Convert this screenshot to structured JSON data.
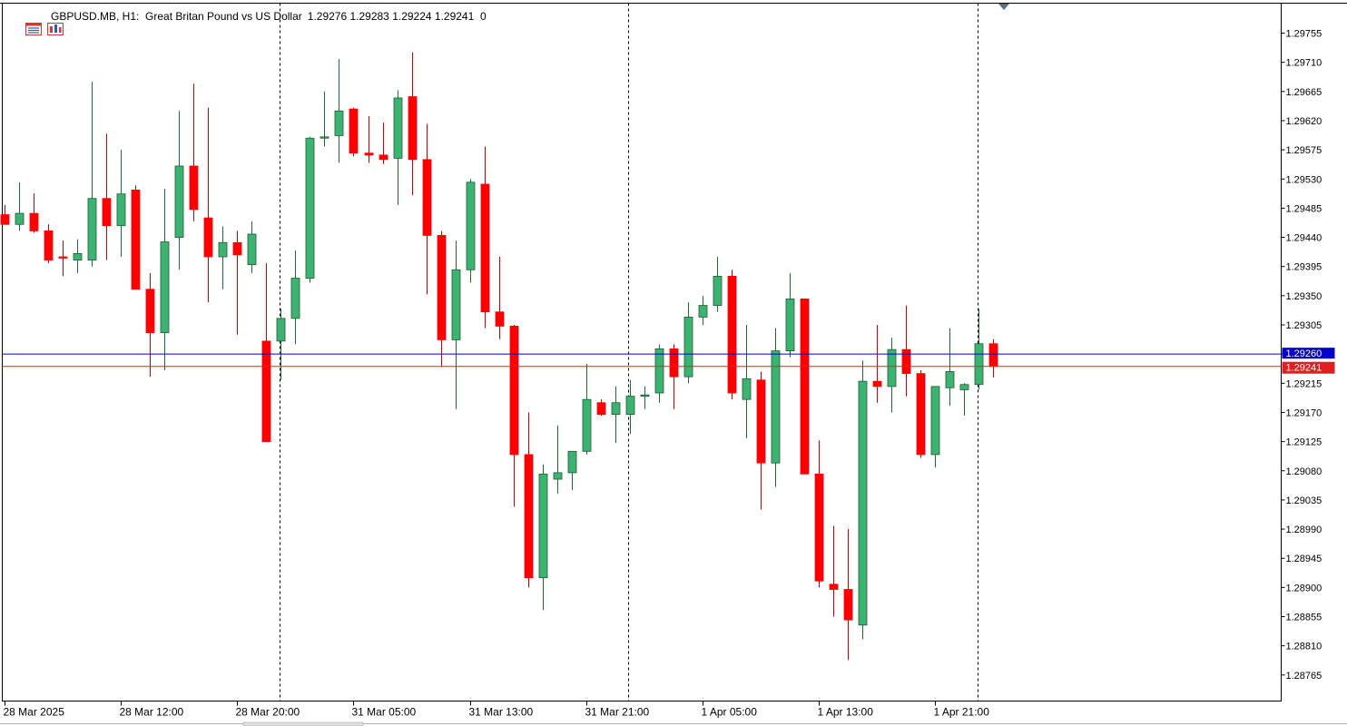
{
  "header": {
    "symbol_text": "GBPUSD.MB, H1:  Great Britan Pound vs US Dollar",
    "ohlc_text": "1.29276 1.29283 1.29224 1.29241  0"
  },
  "colors": {
    "bull": "#3cb371",
    "bear": "#ff0000",
    "ask_line": "#0000cd",
    "bid_line": "#e02020",
    "grid_sep": "#000000",
    "text": "#000000"
  },
  "icons": [
    "chart-list-icon",
    "chart-settings-icon"
  ],
  "price_tags": {
    "ask_value": "1.29260",
    "bid_value": "1.29241"
  },
  "chart_data": {
    "type": "candlestick",
    "title": "",
    "symbol": "GBPUSD.MB",
    "timeframe": "H1",
    "ylim": [
      1.2874,
      1.298
    ],
    "yticks": [
      "1.29755",
      "1.29710",
      "1.29665",
      "1.29620",
      "1.29575",
      "1.29530",
      "1.29485",
      "1.29440",
      "1.29395",
      "1.29350",
      "1.29305",
      "1.29260",
      "1.29215",
      "1.29170",
      "1.29125",
      "1.29080",
      "1.29035",
      "1.28990",
      "1.28945",
      "1.28900",
      "1.28855",
      "1.28810",
      "1.28765"
    ],
    "xticks": [
      {
        "label": "28 Mar 2025",
        "index": 0
      },
      {
        "label": "28 Mar 12:00",
        "index": 8
      },
      {
        "label": "28 Mar 20:00",
        "index": 16
      },
      {
        "label": "31 Mar 05:00",
        "index": 24
      },
      {
        "label": "31 Mar 13:00",
        "index": 32
      },
      {
        "label": "31 Mar 21:00",
        "index": 40
      },
      {
        "label": "1 Apr 05:00",
        "index": 48
      },
      {
        "label": "1 Apr 13:00",
        "index": 56
      },
      {
        "label": "1 Apr 21:00",
        "index": 64
      }
    ],
    "day_separators": [
      18.9,
      42.9,
      66.9
    ],
    "ask_price": 1.2926,
    "bid_price": 1.29241,
    "candles": [
      {
        "o": 1.29475,
        "h": 1.2949,
        "l": 1.2946,
        "c": 1.2946
      },
      {
        "o": 1.2946,
        "h": 1.29525,
        "l": 1.2945,
        "c": 1.29477
      },
      {
        "o": 1.29477,
        "h": 1.29508,
        "l": 1.29447,
        "c": 1.2945
      },
      {
        "o": 1.2945,
        "h": 1.2946,
        "l": 1.294,
        "c": 1.29405
      },
      {
        "o": 1.2941,
        "h": 1.29435,
        "l": 1.2938,
        "c": 1.29408
      },
      {
        "o": 1.29405,
        "h": 1.29437,
        "l": 1.29385,
        "c": 1.29415
      },
      {
        "o": 1.29405,
        "h": 1.2968,
        "l": 1.29395,
        "c": 1.295
      },
      {
        "o": 1.295,
        "h": 1.296,
        "l": 1.29405,
        "c": 1.29458
      },
      {
        "o": 1.29458,
        "h": 1.29575,
        "l": 1.2941,
        "c": 1.29507
      },
      {
        "o": 1.29513,
        "h": 1.2952,
        "l": 1.2936,
        "c": 1.2936
      },
      {
        "o": 1.2936,
        "h": 1.29385,
        "l": 1.29225,
        "c": 1.29293
      },
      {
        "o": 1.29293,
        "h": 1.29515,
        "l": 1.29235,
        "c": 1.29433
      },
      {
        "o": 1.2944,
        "h": 1.29635,
        "l": 1.2939,
        "c": 1.2955
      },
      {
        "o": 1.2955,
        "h": 1.29677,
        "l": 1.29465,
        "c": 1.29483
      },
      {
        "o": 1.2947,
        "h": 1.2964,
        "l": 1.2934,
        "c": 1.2941
      },
      {
        "o": 1.2941,
        "h": 1.29457,
        "l": 1.2936,
        "c": 1.29432
      },
      {
        "o": 1.29432,
        "h": 1.2945,
        "l": 1.2929,
        "c": 1.29413
      },
      {
        "o": 1.29398,
        "h": 1.29465,
        "l": 1.29385,
        "c": 1.29445
      },
      {
        "o": 1.2928,
        "h": 1.294,
        "l": 1.29125,
        "c": 1.29125
      },
      {
        "o": 1.2928,
        "h": 1.2933,
        "l": 1.2922,
        "c": 1.29315
      },
      {
        "o": 1.29315,
        "h": 1.2942,
        "l": 1.29275,
        "c": 1.29377
      },
      {
        "o": 1.29377,
        "h": 1.29595,
        "l": 1.2937,
        "c": 1.29593
      },
      {
        "o": 1.29593,
        "h": 1.29665,
        "l": 1.2958,
        "c": 1.29595
      },
      {
        "o": 1.29597,
        "h": 1.29715,
        "l": 1.29555,
        "c": 1.29635
      },
      {
        "o": 1.29638,
        "h": 1.2964,
        "l": 1.29565,
        "c": 1.2957
      },
      {
        "o": 1.2957,
        "h": 1.29627,
        "l": 1.29555,
        "c": 1.29567
      },
      {
        "o": 1.29567,
        "h": 1.29617,
        "l": 1.29553,
        "c": 1.2956
      },
      {
        "o": 1.29562,
        "h": 1.29667,
        "l": 1.2949,
        "c": 1.29655
      },
      {
        "o": 1.29657,
        "h": 1.29725,
        "l": 1.29505,
        "c": 1.2956
      },
      {
        "o": 1.2956,
        "h": 1.29615,
        "l": 1.29352,
        "c": 1.29443
      },
      {
        "o": 1.29443,
        "h": 1.2945,
        "l": 1.2924,
        "c": 1.29282
      },
      {
        "o": 1.29282,
        "h": 1.29435,
        "l": 1.29175,
        "c": 1.2939
      },
      {
        "o": 1.2939,
        "h": 1.2953,
        "l": 1.2937,
        "c": 1.29525
      },
      {
        "o": 1.29522,
        "h": 1.2958,
        "l": 1.293,
        "c": 1.29325
      },
      {
        "o": 1.29325,
        "h": 1.2941,
        "l": 1.29283,
        "c": 1.29303
      },
      {
        "o": 1.29303,
        "h": 1.29305,
        "l": 1.29025,
        "c": 1.29105
      },
      {
        "o": 1.29105,
        "h": 1.2917,
        "l": 1.289,
        "c": 1.28915
      },
      {
        "o": 1.28915,
        "h": 1.2909,
        "l": 1.28865,
        "c": 1.29075
      },
      {
        "o": 1.29067,
        "h": 1.2915,
        "l": 1.29045,
        "c": 1.29077
      },
      {
        "o": 1.29077,
        "h": 1.2911,
        "l": 1.2905,
        "c": 1.2911
      },
      {
        "o": 1.2911,
        "h": 1.29245,
        "l": 1.29105,
        "c": 1.2919
      },
      {
        "o": 1.29185,
        "h": 1.2919,
        "l": 1.29165,
        "c": 1.29167
      },
      {
        "o": 1.29167,
        "h": 1.2921,
        "l": 1.29123,
        "c": 1.29185
      },
      {
        "o": 1.29167,
        "h": 1.2922,
        "l": 1.29137,
        "c": 1.29195
      },
      {
        "o": 1.29195,
        "h": 1.2921,
        "l": 1.29175,
        "c": 1.29197
      },
      {
        "o": 1.292,
        "h": 1.29275,
        "l": 1.29185,
        "c": 1.29268
      },
      {
        "o": 1.29268,
        "h": 1.29275,
        "l": 1.29175,
        "c": 1.29225
      },
      {
        "o": 1.29225,
        "h": 1.2934,
        "l": 1.29215,
        "c": 1.29317
      },
      {
        "o": 1.29317,
        "h": 1.2935,
        "l": 1.29305,
        "c": 1.29335
      },
      {
        "o": 1.29335,
        "h": 1.2941,
        "l": 1.29325,
        "c": 1.2938
      },
      {
        "o": 1.2938,
        "h": 1.2939,
        "l": 1.2919,
        "c": 1.292
      },
      {
        "o": 1.2919,
        "h": 1.29305,
        "l": 1.2913,
        "c": 1.29222
      },
      {
        "o": 1.2922,
        "h": 1.29233,
        "l": 1.2902,
        "c": 1.29092
      },
      {
        "o": 1.29092,
        "h": 1.293,
        "l": 1.29055,
        "c": 1.29265
      },
      {
        "o": 1.29265,
        "h": 1.29385,
        "l": 1.29255,
        "c": 1.29345
      },
      {
        "o": 1.29345,
        "h": 1.29345,
        "l": 1.29075,
        "c": 1.29075
      },
      {
        "o": 1.29075,
        "h": 1.29127,
        "l": 1.289,
        "c": 1.2891
      },
      {
        "o": 1.28905,
        "h": 1.28995,
        "l": 1.28855,
        "c": 1.28897
      },
      {
        "o": 1.28897,
        "h": 1.2899,
        "l": 1.28788,
        "c": 1.2885
      },
      {
        "o": 1.28842,
        "h": 1.2925,
        "l": 1.2882,
        "c": 1.29218
      },
      {
        "o": 1.29218,
        "h": 1.29305,
        "l": 1.29185,
        "c": 1.2921
      },
      {
        "o": 1.2921,
        "h": 1.29285,
        "l": 1.2917,
        "c": 1.29267
      },
      {
        "o": 1.29267,
        "h": 1.29335,
        "l": 1.29195,
        "c": 1.2923
      },
      {
        "o": 1.2923,
        "h": 1.29235,
        "l": 1.291,
        "c": 1.29105
      },
      {
        "o": 1.29105,
        "h": 1.2921,
        "l": 1.29085,
        "c": 1.2921
      },
      {
        "o": 1.29208,
        "h": 1.293,
        "l": 1.2918,
        "c": 1.29233
      },
      {
        "o": 1.29205,
        "h": 1.29215,
        "l": 1.29165,
        "c": 1.29213
      },
      {
        "o": 1.29213,
        "h": 1.2933,
        "l": 1.29205,
        "c": 1.29276
      },
      {
        "o": 1.29276,
        "h": 1.29283,
        "l": 1.29224,
        "c": 1.29241
      }
    ]
  }
}
